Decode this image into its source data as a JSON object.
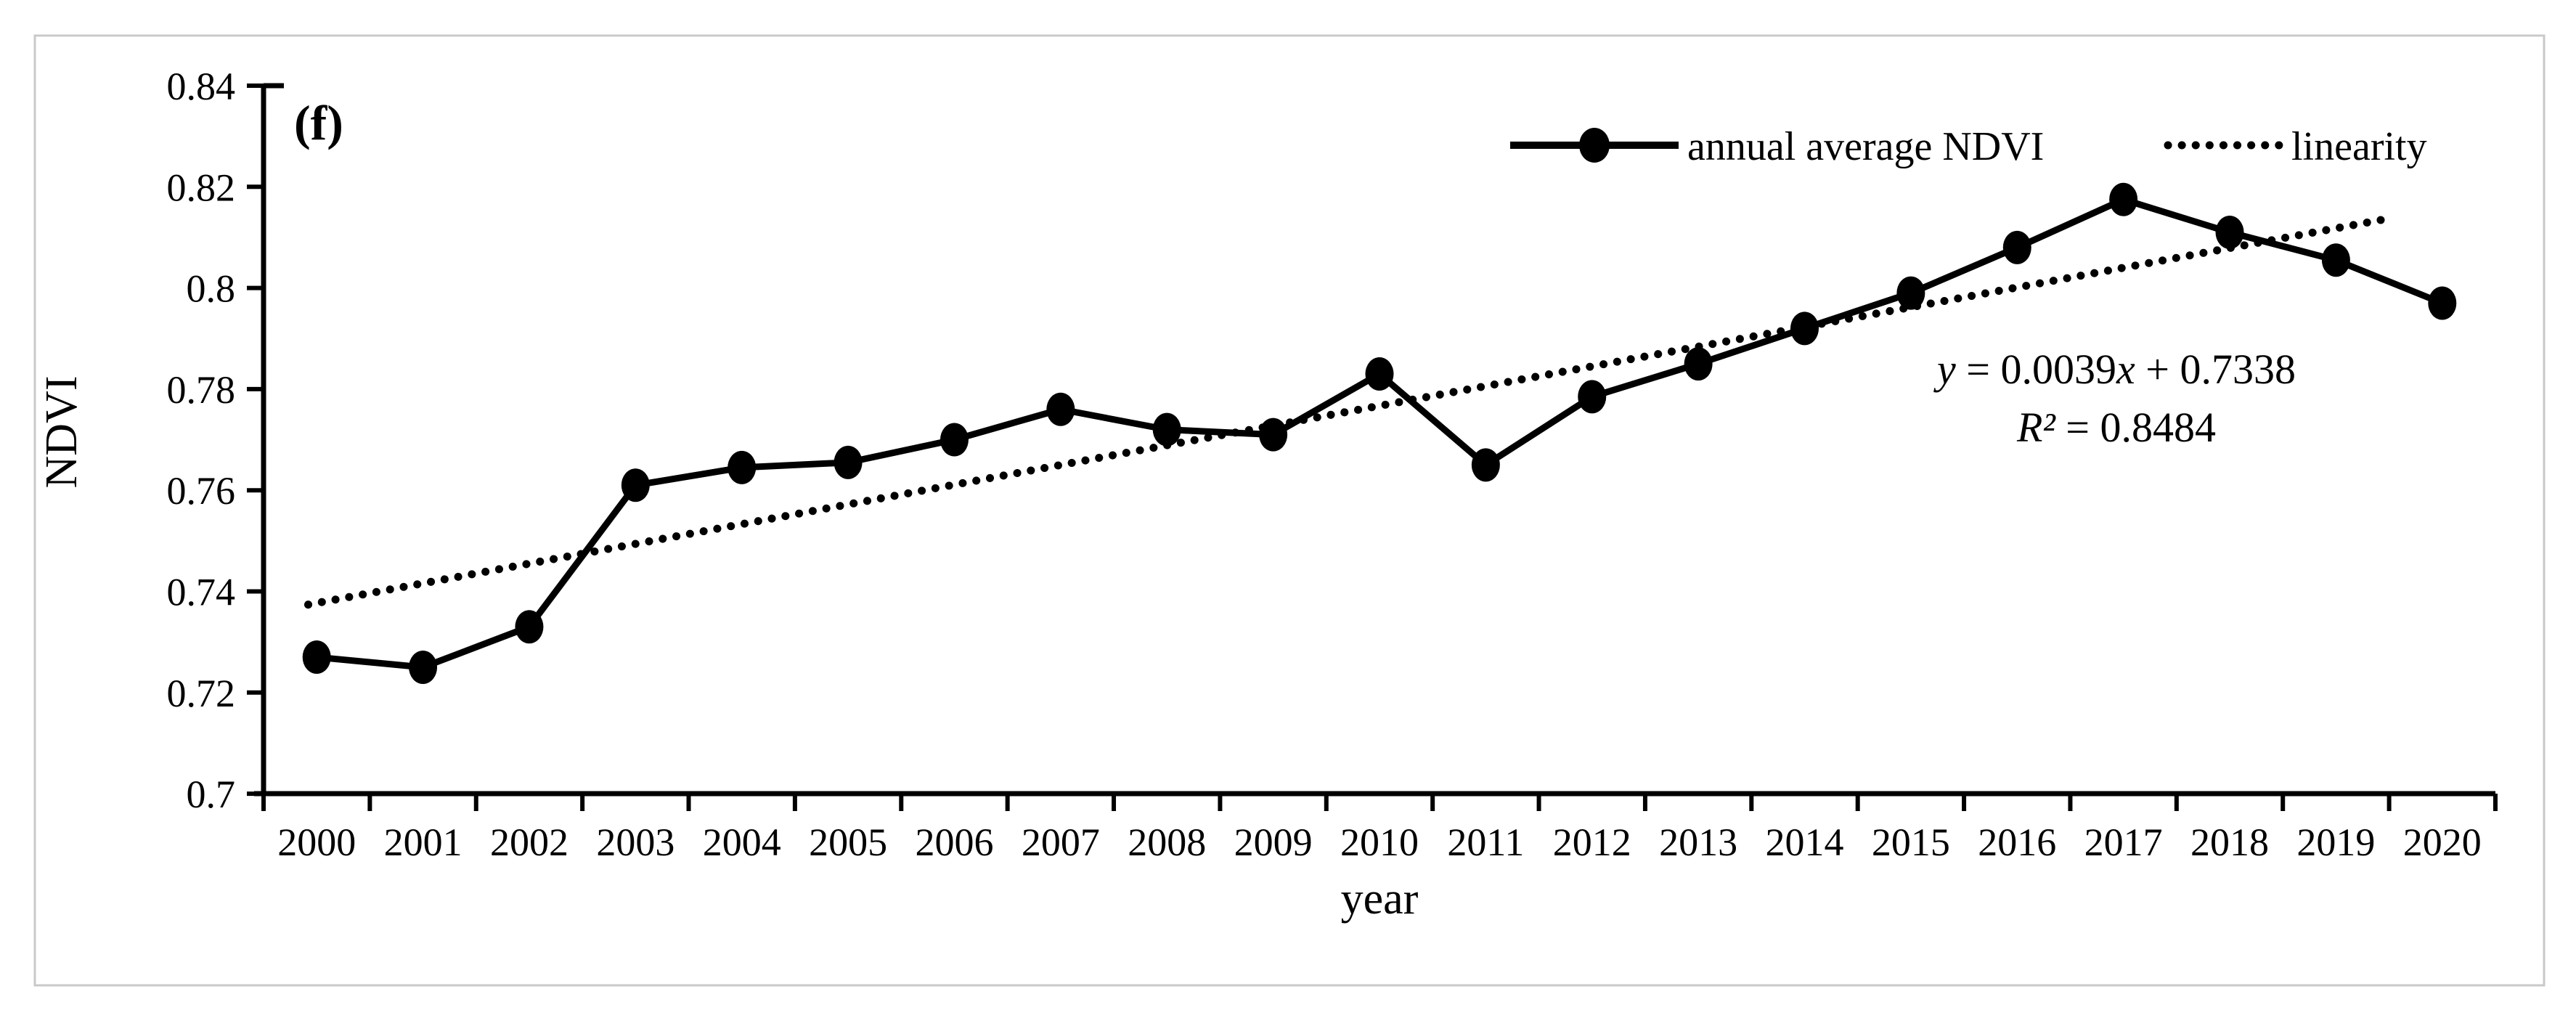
{
  "figure": {
    "panel_label": "(f)",
    "y_axis_title": "NDVI",
    "x_axis_title": "year"
  },
  "legend": {
    "series1_label": "annual average NDVI",
    "series2_label": "linearity"
  },
  "annotation": {
    "eq_lhs": "y",
    "eq_mid": " = 0.0039",
    "eq_xvar": "x",
    "eq_tail": " + 0.7338",
    "r2_lhs": "R²",
    "r2_tail": " = 0.8484"
  },
  "chart_data": {
    "type": "line",
    "title": "",
    "xlabel": "year",
    "ylabel": "NDVI",
    "x": [
      "2000",
      "2001",
      "2002",
      "2003",
      "2004",
      "2005",
      "2006",
      "2007",
      "2008",
      "2009",
      "2010",
      "2011",
      "2012",
      "2013",
      "2014",
      "2015",
      "2016",
      "2017",
      "2018",
      "2019",
      "2020"
    ],
    "series": [
      {
        "name": "annual average NDVI",
        "line": "solid",
        "marker": "filled-circle",
        "color": "#000000",
        "values": [
          0.727,
          0.725,
          0.733,
          0.761,
          0.7645,
          0.7655,
          0.77,
          0.776,
          0.772,
          0.771,
          0.783,
          0.765,
          0.7785,
          0.785,
          0.792,
          0.799,
          0.808,
          0.8175,
          0.811,
          0.8055,
          0.797
        ]
      },
      {
        "name": "linearity",
        "kind": "linear-trendline",
        "line": "dotted",
        "color": "#000000",
        "slope": 0.0039,
        "intercept": 0.7338,
        "r_squared": 0.8484,
        "equation_text": "y = 0.0039x + 0.7338",
        "r_squared_text": "R² = 0.8484"
      }
    ],
    "ylim": [
      0.7,
      0.84
    ],
    "ytick_step": 0.02,
    "yticks": [
      "0.84",
      "0.82",
      "0.8",
      "0.78",
      "0.76",
      "0.74",
      "0.72",
      "0.7"
    ],
    "legend_position": "top-right",
    "grid": false,
    "frame_color": "#c9c9c9",
    "series_color": "#000000"
  }
}
